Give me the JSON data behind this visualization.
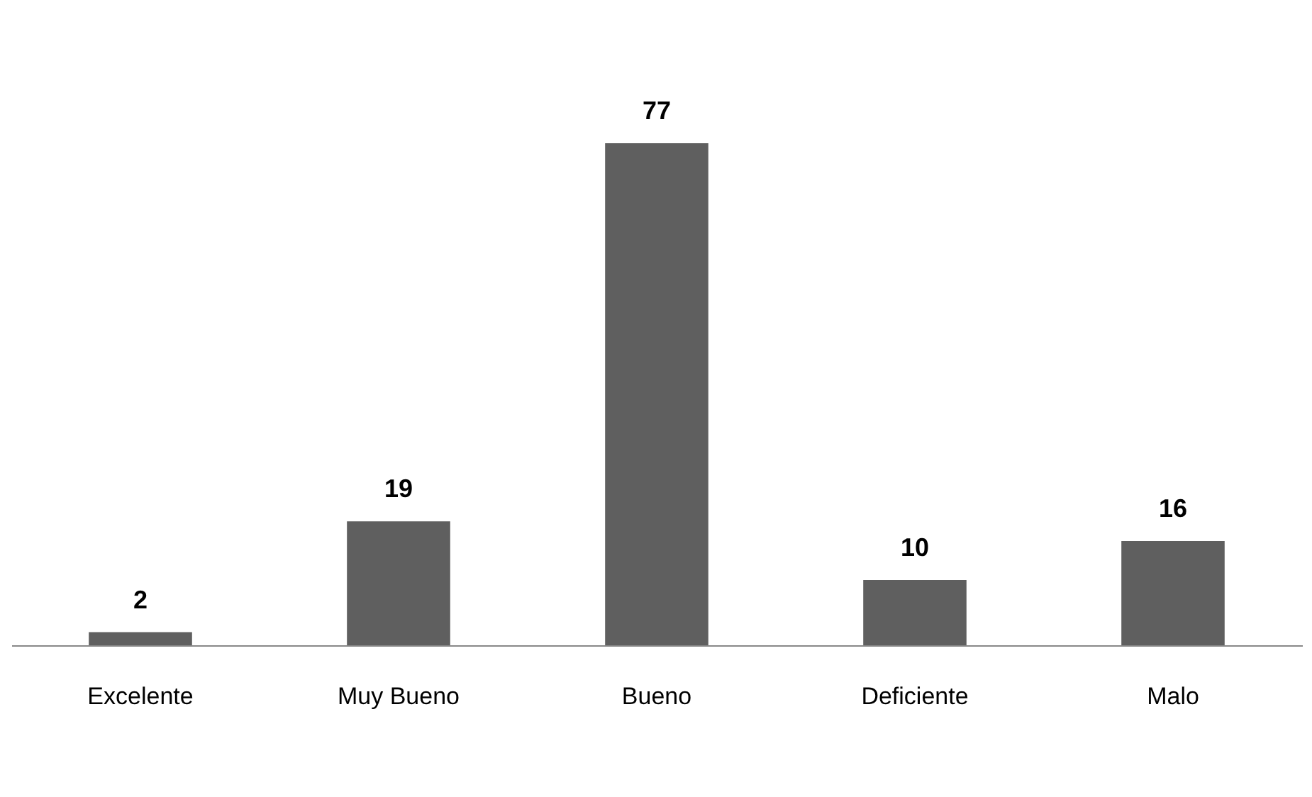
{
  "chart_data": {
    "type": "bar",
    "categories": [
      "Excelente",
      "Muy Bueno",
      "Bueno",
      "Deficiente",
      "Malo"
    ],
    "values": [
      2,
      19,
      77,
      10,
      16
    ],
    "color": "#5f5f5f",
    "data_labels": true,
    "grid": false
  }
}
